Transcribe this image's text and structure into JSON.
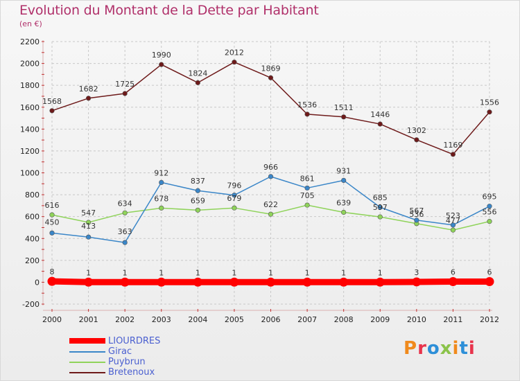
{
  "header": {
    "title": "Evolution du Montant de la Dette par Habitant",
    "subtitle": "(en €)"
  },
  "logo": {
    "text": "Proxiti",
    "colors": [
      "#f08a1c",
      "#e8344c",
      "#2d8fd8",
      "#8bc34a",
      "#f08a1c",
      "#2d8fd8",
      "#e8344c"
    ]
  },
  "chart_data": {
    "type": "line",
    "title": "Evolution du Montant de la Dette par Habitant",
    "subtitle": "(en €)",
    "xlabel": "",
    "ylabel": "",
    "x": [
      "2000",
      "2001",
      "2002",
      "2003",
      "2004",
      "2005",
      "2006",
      "2007",
      "2008",
      "2009",
      "2010",
      "2011",
      "2012"
    ],
    "ylim": [
      -200,
      2200
    ],
    "yticks": [
      -200,
      0,
      200,
      400,
      600,
      800,
      1000,
      1200,
      1400,
      1600,
      1800,
      2000,
      2200
    ],
    "grid": true,
    "legend_position": "bottom-left",
    "series": [
      {
        "name": "LIOURDRES",
        "color": "#ff0000",
        "values": [
          8,
          1,
          1,
          1,
          1,
          1,
          1,
          1,
          1,
          1,
          3,
          6,
          6
        ],
        "labels": [
          "8",
          "1",
          "1",
          "1",
          "1",
          "1",
          "1",
          "1",
          "1",
          "1",
          "3",
          "6",
          "6"
        ]
      },
      {
        "name": "Girac",
        "color": "#3a86c8",
        "values": [
          450,
          413,
          363,
          912,
          837,
          796,
          966,
          861,
          931,
          685,
          567,
          523,
          695
        ],
        "labels": [
          "450",
          "413",
          "363",
          "912",
          "837",
          "796",
          "966",
          "861",
          "931",
          "685",
          "567",
          "523",
          "695"
        ]
      },
      {
        "name": "Puybrun",
        "color": "#8fd35a",
        "values": [
          616,
          547,
          634,
          678,
          659,
          679,
          622,
          705,
          639,
          597,
          536,
          477,
          556
        ],
        "labels": [
          "616",
          "547",
          "634",
          "678",
          "659",
          "679",
          "622",
          "705",
          "639",
          "597",
          "536",
          "477",
          "556"
        ]
      },
      {
        "name": "Bretenoux",
        "color": "#6e1a1a",
        "values": [
          1568,
          1682,
          1725,
          1990,
          1824,
          2012,
          1869,
          1536,
          1511,
          1446,
          1302,
          1169,
          1556
        ],
        "labels": [
          "1568",
          "1682",
          "1725",
          "1990",
          "1824",
          "2012",
          "1869",
          "1536",
          "1511",
          "1446",
          "1302",
          "1169",
          "1556"
        ]
      }
    ]
  }
}
